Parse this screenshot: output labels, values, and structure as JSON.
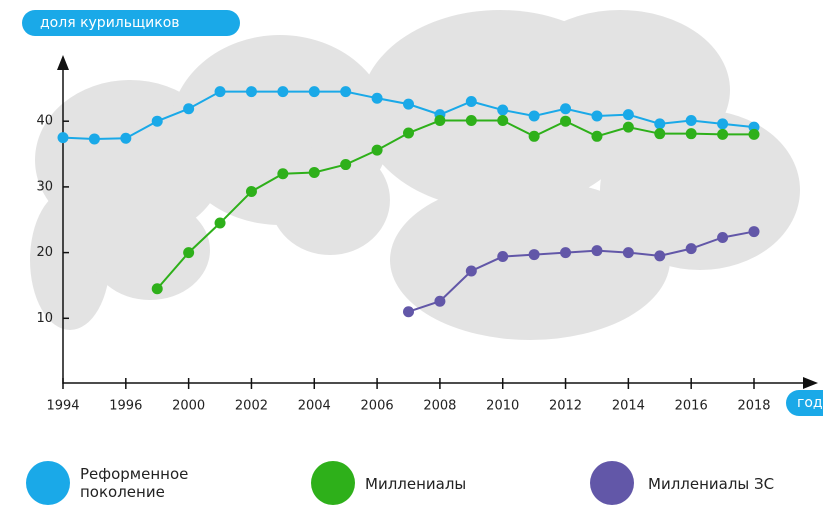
{
  "chart_data": {
    "type": "line",
    "y_label": "доля курильщиков",
    "x_label": "год",
    "categories": [
      "1994",
      null,
      "1996",
      null,
      "2000",
      null,
      "2002",
      null,
      "2004",
      null,
      "2006",
      null,
      "2008",
      null,
      "2010",
      null,
      "2012",
      null,
      "2014",
      null,
      "2016",
      null,
      "2018"
    ],
    "series": [
      {
        "name": "Реформенное поколение",
        "color": "#1aa9e8",
        "values": [
          37.5,
          37.3,
          37.4,
          40.0,
          41.9,
          44.5,
          44.5,
          44.5,
          44.5,
          44.5,
          43.5,
          42.6,
          41.0,
          43.0,
          41.7,
          40.8,
          41.9,
          40.8,
          41.0,
          39.6,
          40.1,
          39.6,
          39.1
        ]
      },
      {
        "name": "Миллениалы",
        "color": "#2eb01a",
        "values": [
          null,
          null,
          null,
          14.5,
          20.0,
          24.5,
          29.3,
          32.0,
          32.2,
          33.4,
          35.6,
          38.2,
          40.1,
          40.1,
          40.1,
          37.7,
          40.0,
          37.7,
          39.1,
          38.1,
          38.1,
          38.0,
          38.0
        ]
      },
      {
        "name": "Миллениалы ЗС",
        "color": "#6257a8",
        "values": [
          null,
          null,
          null,
          null,
          null,
          null,
          null,
          null,
          null,
          null,
          null,
          11.0,
          12.6,
          17.2,
          19.4,
          19.7,
          20.0,
          20.3,
          20.0,
          19.5,
          20.6,
          22.3,
          23.2
        ]
      }
    ],
    "ylim": [
      0,
      50
    ],
    "yticks": [
      10,
      20,
      30,
      40
    ],
    "grid": false
  }
}
